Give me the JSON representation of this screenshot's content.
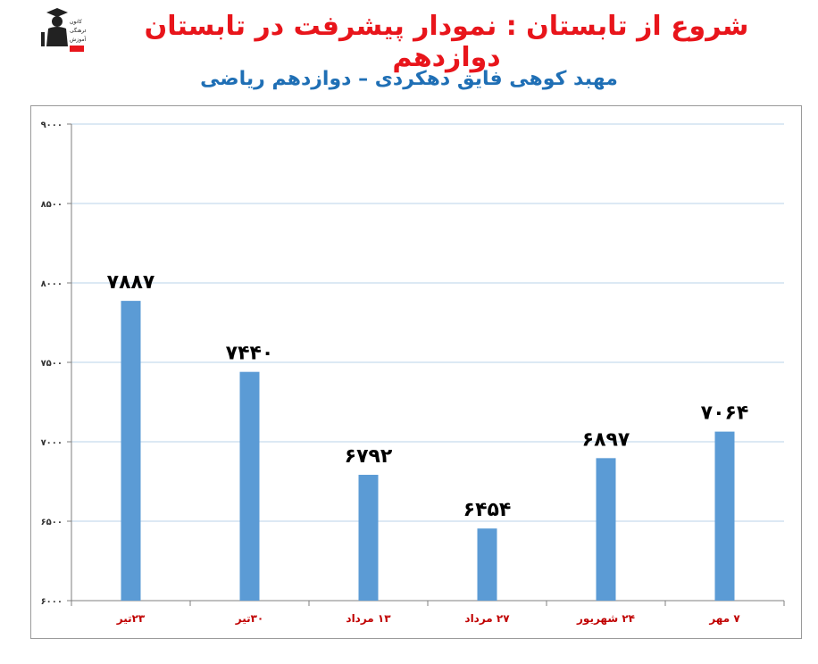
{
  "header": {
    "title": "شروع از تابستان : نمودار پیشرفت در تابستان دوازدهم",
    "subtitle": "مهبد کوهی فایق دهکردی – دوازدهم ریاضی",
    "logo_text": "کانون فرهنگی آموزش"
  },
  "colors": {
    "bar": "#5b9bd5",
    "title": "#e8151b",
    "subtitle": "#1f6fb5",
    "category_label": "#c00000",
    "grid": "#b9d3ea"
  },
  "chart_data": {
    "type": "bar",
    "categories": [
      "۲۳تیر",
      "۳۰تیر",
      "۱۳ مرداد",
      "۲۷ مرداد",
      "۲۴ شهریور",
      "۷ مهر"
    ],
    "values": [
      7887,
      7440,
      6792,
      6454,
      6897,
      7064
    ],
    "value_labels": [
      "۷۸۸۷",
      "۷۴۴۰",
      "۶۷۹۲",
      "۶۴۵۴",
      "۶۸۹۷",
      "۷۰۶۴"
    ],
    "ylim": [
      6000,
      9000
    ],
    "y_ticks": [
      6000,
      6500,
      7000,
      7500,
      8000,
      8500,
      9000
    ],
    "y_tick_labels": [
      "۶۰۰۰",
      "۶۵۰۰",
      "۷۰۰۰",
      "۷۵۰۰",
      "۸۰۰۰",
      "۸۵۰۰",
      "۹۰۰۰"
    ],
    "grid": true,
    "legend": "none"
  }
}
